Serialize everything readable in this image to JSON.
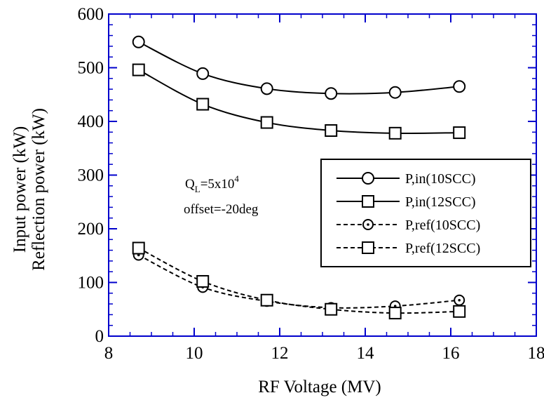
{
  "chart_data": {
    "type": "line",
    "xlabel": "RF Voltage (MV)",
    "ylabel_lines": [
      "Input power (kW)",
      "Reflection power (kW)"
    ],
    "xlim": [
      8,
      18
    ],
    "ylim": [
      0,
      600
    ],
    "x_ticks": [
      8,
      10,
      12,
      14,
      16,
      18
    ],
    "y_ticks": [
      0,
      100,
      200,
      300,
      400,
      500,
      600
    ],
    "x_minor_step": 0.5,
    "y_minor_step": 20,
    "frame_color": "#0000cc",
    "grid": false,
    "legend_position": "right",
    "annotation": {
      "q_base": "Q",
      "q_sub": "L",
      "q_eq": "=5x10",
      "q_sup": "4",
      "offset": "offset=-20deg"
    },
    "series": [
      {
        "name": "P,in(10SCC)",
        "marker": "circle",
        "dash": "solid",
        "marker_size": "large",
        "x": [
          8.7,
          10.2,
          11.7,
          13.2,
          14.7,
          16.2
        ],
        "y": [
          548,
          489,
          461,
          452,
          454,
          465
        ]
      },
      {
        "name": "P,in(12SCC)",
        "marker": "square",
        "dash": "solid",
        "marker_size": "large",
        "x": [
          8.7,
          10.2,
          11.7,
          13.2,
          14.7,
          16.2
        ],
        "y": [
          496,
          432,
          398,
          383,
          378,
          379
        ]
      },
      {
        "name": "P,ref(10SCC)",
        "marker": "circle-dot",
        "dash": "dashed",
        "marker_size": "small",
        "x": [
          8.7,
          10.2,
          11.7,
          13.2,
          14.7,
          16.2
        ],
        "y": [
          151,
          91,
          65,
          53,
          56,
          67
        ]
      },
      {
        "name": "P,ref(12SCC)",
        "marker": "square",
        "dash": "dashed",
        "marker_size": "large",
        "x": [
          8.7,
          10.2,
          11.7,
          13.2,
          14.7,
          16.2
        ],
        "y": [
          164,
          102,
          67,
          50,
          43,
          46
        ]
      }
    ]
  }
}
